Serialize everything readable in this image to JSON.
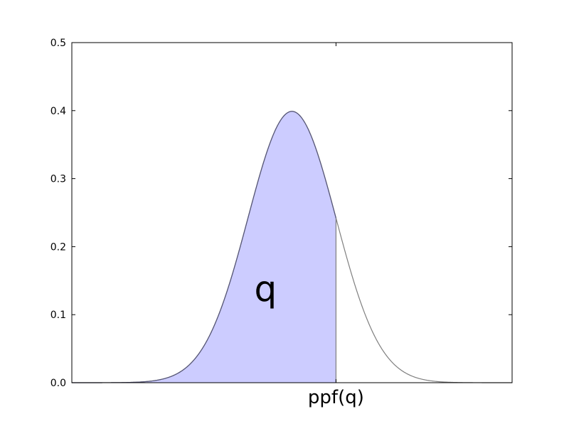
{
  "chart_data": {
    "type": "area",
    "title": "",
    "xlabel": "",
    "ylabel": "",
    "ylim": [
      0,
      0.5
    ],
    "xlim": [
      -5,
      5
    ],
    "yticks": [
      {
        "value": 0.0,
        "label": "0.0"
      },
      {
        "value": 0.1,
        "label": "0.1"
      },
      {
        "value": 0.2,
        "label": "0.2"
      },
      {
        "value": 0.3,
        "label": "0.3"
      },
      {
        "value": 0.4,
        "label": "0.4"
      },
      {
        "value": 0.5,
        "label": "0.5"
      }
    ],
    "xticks": [
      {
        "value": 1.0,
        "label": "ppf(q)"
      }
    ],
    "curve": {
      "distribution": "normal",
      "mean": 0,
      "std": 1,
      "peak": 0.399,
      "color": "#7f7f7f"
    },
    "shaded_region": {
      "from": -5,
      "to": 1.0,
      "color": "#ccccff",
      "edge_color": "#555577",
      "label": "q",
      "label_at": {
        "x": -0.6,
        "y": 0.12
      }
    },
    "grid": false
  }
}
